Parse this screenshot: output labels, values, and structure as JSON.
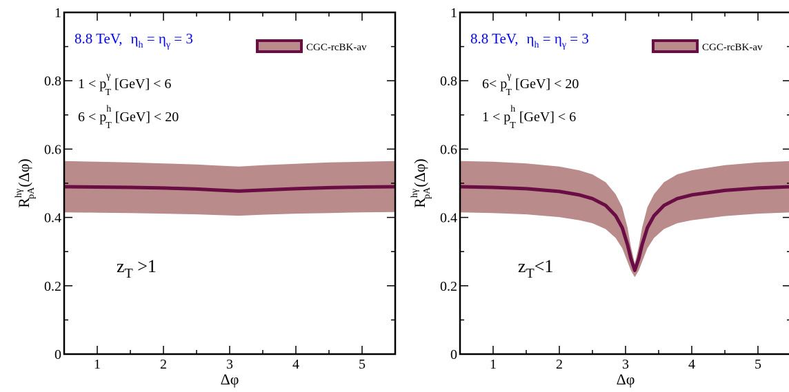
{
  "colors": {
    "band_fill": "#b98b8a",
    "line": "#6b0d45",
    "axis": "#000000",
    "annotation_blue": "#0000ff"
  },
  "chart_data": [
    {
      "type": "area",
      "panel": "left",
      "xlabel": "Δφ",
      "ylabel": {
        "base": "R",
        "sup": "hγ",
        "sub": "pA",
        "arg": "(Δφ)"
      },
      "xlim": [
        0.5,
        5.5
      ],
      "ylim": [
        0,
        1
      ],
      "xticks": [
        "1",
        "2",
        "3",
        "4",
        "5"
      ],
      "yticks": [
        "0",
        "0.2",
        "0.4",
        "0.6",
        "0.8",
        "1"
      ],
      "legend": {
        "label": "CGC-rcBK-av",
        "placement": "top-right"
      },
      "annotations": {
        "energy": "8.8 TeV,",
        "eta": {
          "l1": "η",
          "s1": "h",
          "eq": " = η",
          "s2": "γ",
          "rest": " = 3"
        },
        "cut1": {
          "pre": "1 < p",
          "sup": "γ",
          "sub": "T",
          "post": " [GeV] < 6"
        },
        "cut2": {
          "pre": "6 < p",
          "sup": "h",
          "sub": "T",
          "post": " [GeV] < 20"
        },
        "zt": {
          "pre": "z",
          "sub": "T",
          "post": " >1"
        }
      },
      "series": [
        {
          "name": "CGC-rcBK-av",
          "x": [
            0.5,
            1.0,
            1.5,
            2.0,
            2.5,
            2.8,
            3.14,
            3.5,
            4.0,
            4.5,
            5.0,
            5.5
          ],
          "y": [
            0.49,
            0.489,
            0.488,
            0.486,
            0.483,
            0.48,
            0.477,
            0.48,
            0.484,
            0.487,
            0.489,
            0.49
          ],
          "lower": [
            0.415,
            0.414,
            0.413,
            0.411,
            0.409,
            0.407,
            0.405,
            0.408,
            0.411,
            0.413,
            0.415,
            0.416
          ],
          "upper": [
            0.565,
            0.563,
            0.561,
            0.558,
            0.555,
            0.552,
            0.549,
            0.553,
            0.557,
            0.561,
            0.563,
            0.565
          ]
        }
      ]
    },
    {
      "type": "area",
      "panel": "right",
      "xlabel": "Δφ",
      "ylabel": {
        "base": "R",
        "sup": "hγ",
        "sub": "pA",
        "arg": "(Δφ)"
      },
      "xlim": [
        0.5,
        5.5
      ],
      "ylim": [
        0,
        1
      ],
      "xticks": [
        "1",
        "2",
        "3",
        "4",
        "5"
      ],
      "yticks": [
        "0",
        "0.2",
        "0.4",
        "0.6",
        "0.8",
        "1"
      ],
      "legend": {
        "label": "CGC-rcBK-av",
        "placement": "top-right"
      },
      "annotations": {
        "energy": "8.8 TeV,",
        "eta": {
          "l1": "η",
          "s1": "h",
          "eq": " = η",
          "s2": "γ",
          "rest": " = 3"
        },
        "cut1": {
          "pre": "6< p",
          "sup": "γ",
          "sub": "T",
          "post": " [GeV] < 20"
        },
        "cut2": {
          "pre": "1 < p",
          "sup": "h",
          "sub": "T",
          "post": " [GeV] < 6"
        },
        "zt": {
          "pre": "z",
          "sub": "T",
          "post": "<1"
        }
      },
      "series": [
        {
          "name": "CGC-rcBK-av",
          "x": [
            0.5,
            1.0,
            1.5,
            2.0,
            2.3,
            2.5,
            2.7,
            2.85,
            2.95,
            3.03,
            3.08,
            3.14,
            3.2,
            3.25,
            3.33,
            3.43,
            3.58,
            3.78,
            4.0,
            4.5,
            5.0,
            5.5
          ],
          "y": [
            0.49,
            0.488,
            0.484,
            0.476,
            0.466,
            0.455,
            0.435,
            0.405,
            0.37,
            0.32,
            0.28,
            0.245,
            0.28,
            0.32,
            0.37,
            0.405,
            0.435,
            0.455,
            0.466,
            0.479,
            0.486,
            0.49
          ],
          "lower": [
            0.415,
            0.413,
            0.409,
            0.401,
            0.392,
            0.383,
            0.366,
            0.34,
            0.31,
            0.27,
            0.245,
            0.225,
            0.245,
            0.27,
            0.31,
            0.34,
            0.366,
            0.383,
            0.392,
            0.404,
            0.411,
            0.415
          ],
          "upper": [
            0.565,
            0.563,
            0.558,
            0.549,
            0.538,
            0.526,
            0.503,
            0.468,
            0.43,
            0.37,
            0.315,
            0.265,
            0.315,
            0.37,
            0.43,
            0.468,
            0.503,
            0.526,
            0.538,
            0.553,
            0.561,
            0.565
          ]
        }
      ]
    }
  ]
}
